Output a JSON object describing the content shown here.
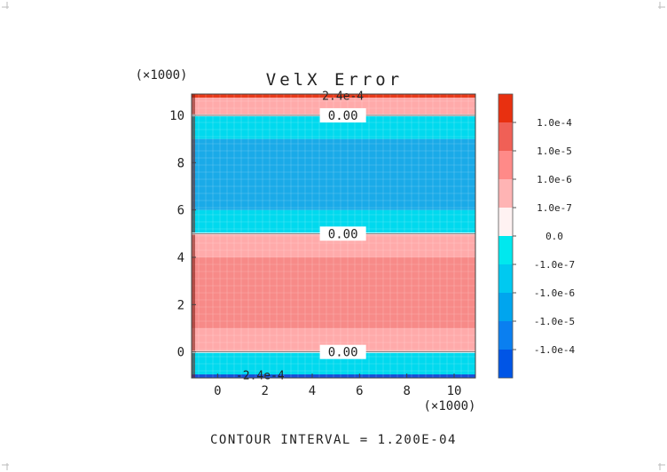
{
  "chart_data": {
    "type": "heatmap",
    "title": "VelX Error",
    "x_scale_label": "(×1000)",
    "y_scale_label": "(×1000)",
    "xlim": [
      -1.1,
      10.9
    ],
    "ylim": [
      -1.1,
      10.9
    ],
    "x_ticks": [
      0,
      2,
      4,
      6,
      8,
      10
    ],
    "y_ticks": [
      0,
      2,
      4,
      6,
      8,
      10
    ],
    "footer": "CONTOUR INTERVAL = 1.200E-04",
    "colorbar": {
      "colors": [
        "#0055e6",
        "#0a7ff0",
        "#00a5ee",
        "#00c9f0",
        "#00e8ee",
        "#fff2f2",
        "#ffb4b4",
        "#ff8a88",
        "#f06056",
        "#e83010"
      ],
      "labels": [
        "-1.0e-4",
        "-1.0e-5",
        "-1.0e-6",
        "-1.0e-7",
        "0.0",
        "1.0e-7",
        "1.0e-6",
        "1.0e-5",
        "1.0e-4"
      ]
    },
    "bands": [
      {
        "y0": -1.1,
        "y1": -0.95,
        "color": "#1a50d8"
      },
      {
        "y0": -0.95,
        "y1": 0.0,
        "color": "#00d9ee"
      },
      {
        "y0": 0.0,
        "y1": 1.0,
        "color": "#ffaaaa"
      },
      {
        "y0": 1.0,
        "y1": 4.0,
        "color": "#f78a88"
      },
      {
        "y0": 4.0,
        "y1": 5.0,
        "color": "#ffaaaa"
      },
      {
        "y0": 5.0,
        "y1": 6.0,
        "color": "#00d9ee"
      },
      {
        "y0": 6.0,
        "y1": 9.0,
        "color": "#1aaae8"
      },
      {
        "y0": 9.0,
        "y1": 10.0,
        "color": "#00d9ee"
      },
      {
        "y0": 10.0,
        "y1": 10.75,
        "color": "#ffaaaa"
      },
      {
        "y0": 10.75,
        "y1": 10.9,
        "color": "#e83a1a"
      }
    ],
    "contour_lines": [
      {
        "y": 10.0,
        "label": "0.00"
      },
      {
        "y": 5.0,
        "label": "0.00"
      },
      {
        "y": 0.0,
        "label": "0.00"
      }
    ],
    "extreme_labels": [
      {
        "x": 5.3,
        "y": 10.8,
        "label": "2.4e-4"
      },
      {
        "x": 1.8,
        "y": -1.0,
        "label": "-2.4e-4"
      }
    ]
  }
}
